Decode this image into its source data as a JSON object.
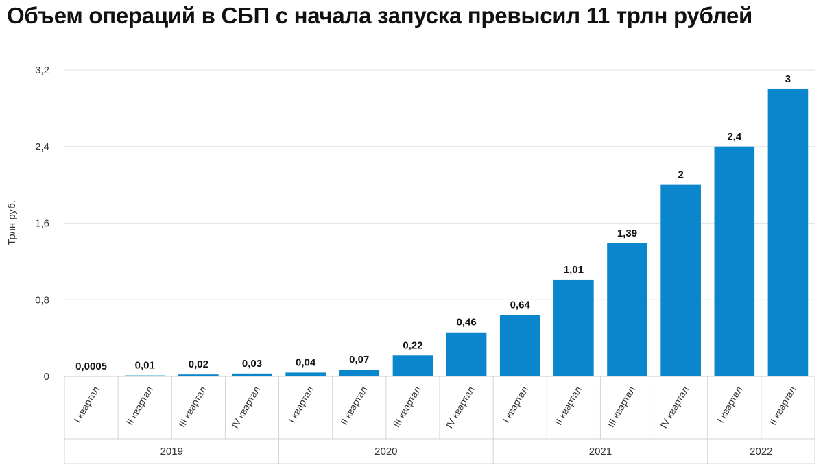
{
  "title": "Объем операций в СБП с начала запуска превысил 11 трлн рублей",
  "colors": {
    "bar": "#0a87cc",
    "grid": "#e3e6ea",
    "axis": "#cfd4d9"
  },
  "chart_data": {
    "type": "bar",
    "ylabel": "Трлн руб.",
    "ylim": [
      0,
      3.2
    ],
    "yticks": [
      0,
      0.8,
      1.6,
      2.4,
      3.2
    ],
    "ytick_labels": [
      "0",
      "0,8",
      "1,6",
      "2,4",
      "3,2"
    ],
    "grid": true,
    "categories": [
      "I квартал",
      "II квартал",
      "III квартал",
      "IV квартал",
      "I квартал",
      "II квартал",
      "III квартал",
      "IV квартал",
      "I квартал",
      "II квартал",
      "III квартал",
      "IV квартал",
      "I квартал",
      "II квартал"
    ],
    "values": [
      0.0005,
      0.01,
      0.02,
      0.03,
      0.04,
      0.07,
      0.22,
      0.46,
      0.64,
      1.01,
      1.39,
      2,
      2.4,
      3
    ],
    "value_labels": [
      "0,0005",
      "0,01",
      "0,02",
      "0,03",
      "0,04",
      "0,07",
      "0,22",
      "0,46",
      "0,64",
      "1,01",
      "1,39",
      "2",
      "2,4",
      "3"
    ],
    "groups": [
      {
        "label": "2019",
        "count": 4
      },
      {
        "label": "2020",
        "count": 4
      },
      {
        "label": "2021",
        "count": 4
      },
      {
        "label": "2022",
        "count": 2
      }
    ]
  }
}
